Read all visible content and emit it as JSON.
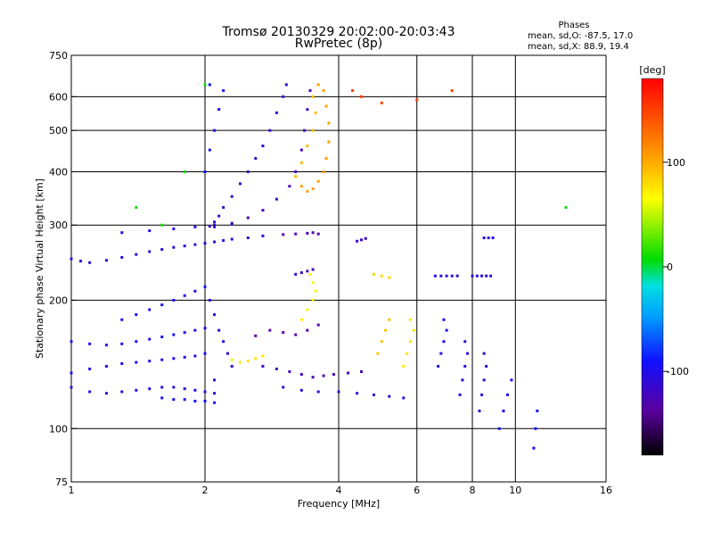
{
  "chart_data": {
    "type": "scatter",
    "title_line1": "Tromsø 20130329 20:02:00-20:03:43",
    "title_line2": "RwPretec (8p)",
    "stats": {
      "heading": "Phases",
      "line_o": "mean, sd,O:  -87.5, 17.0",
      "line_x": "mean, sd,X:  88.9, 19.4"
    },
    "xlabel": "Frequency [MHz]",
    "ylabel": "Stationary phase Virtual Height [km]",
    "x_scale": "log",
    "y_scale": "log",
    "xlim": [
      1,
      16
    ],
    "ylim": [
      75,
      750
    ],
    "x_ticks": [
      {
        "value": 1,
        "label": "1"
      },
      {
        "value": 2,
        "label": "2"
      },
      {
        "value": 4,
        "label": "4"
      },
      {
        "value": 6,
        "label": "6"
      },
      {
        "value": 8,
        "label": "8"
      },
      {
        "value": 10,
        "label": "10"
      },
      {
        "value": 16,
        "label": "16"
      }
    ],
    "y_ticks": [
      {
        "value": 75,
        "label": "75"
      },
      {
        "value": 100,
        "label": "100"
      },
      {
        "value": 200,
        "label": "200"
      },
      {
        "value": 300,
        "label": "300"
      },
      {
        "value": 400,
        "label": "400"
      },
      {
        "value": 500,
        "label": "500"
      },
      {
        "value": 600,
        "label": "600"
      },
      {
        "value": 750,
        "label": "750"
      }
    ],
    "grid_x": [
      2,
      4,
      6,
      8,
      10
    ],
    "grid_y": [
      100,
      200,
      300,
      400,
      500,
      600
    ],
    "colorbar": {
      "label": "[deg]",
      "range": [
        -180,
        180
      ],
      "ticks": [
        {
          "value": 100,
          "label": "100"
        },
        {
          "value": 0,
          "label": "0"
        },
        {
          "value": -100,
          "label": "-100"
        }
      ]
    },
    "series": [
      {
        "phase": -110,
        "points": [
          [
            1.0,
            250
          ],
          [
            1.05,
            247
          ],
          [
            1.1,
            245
          ],
          [
            1.2,
            248
          ],
          [
            1.3,
            252
          ],
          [
            1.4,
            256
          ],
          [
            1.5,
            260
          ],
          [
            1.6,
            263
          ],
          [
            1.7,
            266
          ],
          [
            1.8,
            268
          ],
          [
            1.9,
            270
          ],
          [
            2.0,
            272
          ],
          [
            2.1,
            274
          ],
          [
            2.2,
            276
          ],
          [
            2.3,
            278
          ],
          [
            2.5,
            280
          ],
          [
            2.7,
            283
          ]
        ]
      },
      {
        "phase": -100,
        "points": [
          [
            1.3,
            288
          ],
          [
            1.5,
            291
          ],
          [
            1.7,
            294
          ],
          [
            1.9,
            297
          ],
          [
            2.1,
            300
          ],
          [
            2.3,
            302
          ]
        ]
      },
      {
        "phase": -115,
        "points": [
          [
            2.05,
            298
          ],
          [
            2.1,
            305
          ],
          [
            2.15,
            315
          ],
          [
            2.2,
            330
          ],
          [
            2.3,
            350
          ],
          [
            2.4,
            375
          ],
          [
            2.5,
            400
          ],
          [
            2.6,
            430
          ],
          [
            2.7,
            460
          ],
          [
            2.8,
            500
          ],
          [
            2.9,
            550
          ],
          [
            3.0,
            600
          ],
          [
            3.05,
            640
          ]
        ]
      },
      {
        "phase": -120,
        "points": [
          [
            2.1,
            297
          ],
          [
            2.3,
            303
          ],
          [
            2.5,
            312
          ],
          [
            2.7,
            325
          ],
          [
            2.9,
            345
          ],
          [
            3.1,
            370
          ],
          [
            3.2,
            400
          ],
          [
            3.3,
            450
          ],
          [
            3.35,
            500
          ],
          [
            3.4,
            560
          ],
          [
            3.45,
            620
          ]
        ]
      },
      {
        "phase": -95,
        "points": [
          [
            2.0,
            400
          ],
          [
            2.05,
            450
          ],
          [
            2.1,
            500
          ],
          [
            2.15,
            560
          ],
          [
            2.2,
            620
          ],
          [
            2.05,
            640
          ]
        ]
      },
      {
        "phase": 105,
        "points": [
          [
            3.3,
            370
          ],
          [
            3.4,
            360
          ],
          [
            3.5,
            365
          ],
          [
            3.6,
            380
          ],
          [
            3.7,
            400
          ],
          [
            3.75,
            430
          ],
          [
            3.8,
            470
          ],
          [
            3.8,
            520
          ],
          [
            3.75,
            570
          ],
          [
            3.7,
            620
          ],
          [
            3.6,
            640
          ]
        ]
      },
      {
        "phase": 95,
        "points": [
          [
            3.2,
            390
          ],
          [
            3.3,
            420
          ],
          [
            3.4,
            460
          ],
          [
            3.5,
            500
          ],
          [
            3.55,
            550
          ],
          [
            3.5,
            600
          ]
        ]
      },
      {
        "phase": -130,
        "points": [
          [
            3.0,
            285
          ],
          [
            3.2,
            286
          ],
          [
            3.4,
            287
          ],
          [
            3.5,
            288
          ],
          [
            3.6,
            286
          ]
        ]
      },
      {
        "phase": -105,
        "points": [
          [
            1.0,
            125
          ],
          [
            1.1,
            122
          ],
          [
            1.2,
            121
          ],
          [
            1.3,
            122
          ],
          [
            1.4,
            123
          ],
          [
            1.5,
            124
          ],
          [
            1.6,
            125
          ],
          [
            1.7,
            125
          ],
          [
            1.8,
            124
          ],
          [
            1.9,
            123
          ],
          [
            2.0,
            122
          ],
          [
            2.1,
            121
          ]
        ]
      },
      {
        "phase": -100,
        "points": [
          [
            1.0,
            135
          ],
          [
            1.1,
            138
          ],
          [
            1.2,
            140
          ],
          [
            1.3,
            142
          ],
          [
            1.4,
            143
          ],
          [
            1.5,
            144
          ],
          [
            1.6,
            145
          ],
          [
            1.7,
            146
          ],
          [
            1.8,
            147
          ],
          [
            1.9,
            148
          ],
          [
            2.0,
            150
          ]
        ]
      },
      {
        "phase": -98,
        "points": [
          [
            1.0,
            160
          ],
          [
            1.1,
            158
          ],
          [
            1.2,
            157
          ],
          [
            1.3,
            158
          ],
          [
            1.4,
            160
          ],
          [
            1.5,
            162
          ],
          [
            1.6,
            164
          ],
          [
            1.7,
            166
          ],
          [
            1.8,
            168
          ],
          [
            1.9,
            170
          ],
          [
            2.0,
            172
          ]
        ]
      },
      {
        "phase": -100,
        "points": [
          [
            1.3,
            180
          ],
          [
            1.4,
            185
          ],
          [
            1.5,
            190
          ],
          [
            1.6,
            195
          ],
          [
            1.7,
            200
          ],
          [
            1.8,
            205
          ],
          [
            1.9,
            210
          ],
          [
            2.0,
            215
          ]
        ]
      },
      {
        "phase": -108,
        "points": [
          [
            2.05,
            200
          ],
          [
            2.1,
            185
          ],
          [
            2.15,
            170
          ],
          [
            2.2,
            160
          ],
          [
            2.25,
            150
          ],
          [
            2.3,
            140
          ],
          [
            2.1,
            130
          ]
        ]
      },
      {
        "phase": -95,
        "points": [
          [
            1.6,
            118
          ],
          [
            1.7,
            117
          ],
          [
            1.8,
            117
          ],
          [
            1.9,
            116
          ],
          [
            2.0,
            116
          ],
          [
            2.1,
            115
          ]
        ]
      },
      {
        "phase": 75,
        "points": [
          [
            2.3,
            145
          ],
          [
            2.4,
            143
          ],
          [
            2.5,
            144
          ],
          [
            2.6,
            146
          ],
          [
            2.7,
            148
          ]
        ]
      },
      {
        "phase": -135,
        "points": [
          [
            2.6,
            165
          ],
          [
            2.8,
            170
          ],
          [
            3.0,
            168
          ],
          [
            3.2,
            166
          ],
          [
            3.4,
            170
          ],
          [
            3.6,
            175
          ]
        ]
      },
      {
        "phase": -125,
        "points": [
          [
            2.7,
            140
          ],
          [
            2.9,
            138
          ],
          [
            3.1,
            136
          ],
          [
            3.3,
            134
          ],
          [
            3.5,
            132
          ],
          [
            3.7,
            133
          ],
          [
            3.9,
            134
          ],
          [
            4.2,
            135
          ],
          [
            4.5,
            136
          ]
        ]
      },
      {
        "phase": -112,
        "points": [
          [
            3.0,
            125
          ],
          [
            3.3,
            123
          ],
          [
            3.6,
            122
          ],
          [
            4.0,
            122
          ],
          [
            4.4,
            121
          ],
          [
            4.8,
            120
          ],
          [
            5.2,
            119
          ],
          [
            5.6,
            118
          ]
        ]
      },
      {
        "phase": 70,
        "points": [
          [
            3.3,
            180
          ],
          [
            3.4,
            190
          ],
          [
            3.5,
            200
          ],
          [
            3.55,
            210
          ],
          [
            3.5,
            220
          ],
          [
            3.45,
            230
          ]
        ]
      },
      {
        "phase": -120,
        "points": [
          [
            3.2,
            230
          ],
          [
            3.3,
            232
          ],
          [
            3.4,
            234
          ],
          [
            3.5,
            236
          ]
        ]
      },
      {
        "phase": -115,
        "points": [
          [
            4.4,
            275
          ],
          [
            4.5,
            277
          ],
          [
            4.6,
            279
          ]
        ]
      },
      {
        "phase": -110,
        "points": [
          [
            6.6,
            228
          ],
          [
            6.8,
            228
          ],
          [
            7.0,
            228
          ],
          [
            7.2,
            228
          ],
          [
            7.4,
            228
          ]
        ]
      },
      {
        "phase": -110,
        "points": [
          [
            8.0,
            228
          ],
          [
            8.2,
            228
          ],
          [
            8.4,
            228
          ],
          [
            8.6,
            228
          ],
          [
            8.8,
            228
          ]
        ]
      },
      {
        "phase": -108,
        "points": [
          [
            8.5,
            280
          ],
          [
            8.7,
            280
          ],
          [
            8.9,
            280
          ]
        ]
      },
      {
        "phase": 80,
        "points": [
          [
            4.8,
            230
          ],
          [
            5.0,
            228
          ],
          [
            5.2,
            226
          ]
        ]
      },
      {
        "phase": 90,
        "points": [
          [
            4.9,
            150
          ],
          [
            5.0,
            160
          ],
          [
            5.1,
            170
          ],
          [
            5.2,
            180
          ]
        ]
      },
      {
        "phase": 75,
        "points": [
          [
            5.6,
            140
          ],
          [
            5.7,
            150
          ],
          [
            5.8,
            160
          ],
          [
            5.9,
            170
          ],
          [
            5.8,
            180
          ]
        ]
      },
      {
        "phase": -100,
        "points": [
          [
            6.7,
            140
          ],
          [
            6.8,
            150
          ],
          [
            6.9,
            160
          ],
          [
            7.0,
            170
          ],
          [
            6.9,
            180
          ]
        ]
      },
      {
        "phase": -105,
        "points": [
          [
            7.5,
            120
          ],
          [
            7.6,
            130
          ],
          [
            7.7,
            140
          ],
          [
            7.8,
            150
          ],
          [
            7.7,
            160
          ]
        ]
      },
      {
        "phase": -110,
        "points": [
          [
            8.3,
            110
          ],
          [
            8.4,
            120
          ],
          [
            8.5,
            130
          ],
          [
            8.6,
            140
          ],
          [
            8.5,
            150
          ]
        ]
      },
      {
        "phase": -95,
        "points": [
          [
            9.2,
            100
          ],
          [
            9.4,
            110
          ],
          [
            9.6,
            120
          ],
          [
            9.8,
            130
          ]
        ]
      },
      {
        "phase": -90,
        "points": [
          [
            11.0,
            90
          ],
          [
            11.1,
            100
          ],
          [
            11.2,
            110
          ]
        ]
      },
      {
        "phase": 150,
        "points": [
          [
            4.3,
            620
          ],
          [
            4.5,
            600
          ],
          [
            5.0,
            580
          ],
          [
            6.0,
            590
          ],
          [
            7.2,
            620
          ]
        ]
      },
      {
        "phase": 10,
        "points": [
          [
            1.6,
            300
          ],
          [
            1.8,
            400
          ],
          [
            1.4,
            330
          ],
          [
            2.0,
            640
          ],
          [
            13.0,
            330
          ]
        ]
      }
    ]
  }
}
